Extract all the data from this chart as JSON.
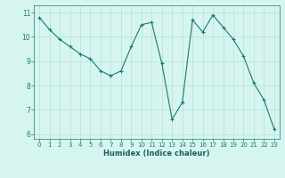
{
  "x": [
    0,
    1,
    2,
    3,
    4,
    5,
    6,
    7,
    8,
    9,
    10,
    11,
    12,
    13,
    14,
    15,
    16,
    17,
    18,
    19,
    20,
    21,
    22,
    23
  ],
  "y": [
    10.8,
    10.3,
    9.9,
    9.6,
    9.3,
    9.1,
    8.6,
    8.4,
    8.6,
    9.6,
    10.5,
    10.6,
    8.9,
    6.6,
    7.3,
    10.7,
    10.2,
    10.9,
    10.4,
    9.9,
    9.2,
    8.1,
    7.4,
    6.2
  ],
  "line_color": "#1a7a6e",
  "marker": "+",
  "marker_size": 3,
  "marker_color": "#1a7a6e",
  "bg_color": "#d6f5f0",
  "grid_color": "#b8e0d8",
  "axis_color": "#1a7a6e",
  "tick_color": "#1a7a6e",
  "xlabel": "Humidex (Indice chaleur)",
  "xlabel_color": "#1a5f5a",
  "xlim": [
    -0.5,
    23.5
  ],
  "ylim": [
    5.8,
    11.3
  ],
  "yticks": [
    6,
    7,
    8,
    9,
    10,
    11
  ],
  "xticks": [
    0,
    1,
    2,
    3,
    4,
    5,
    6,
    7,
    8,
    9,
    10,
    11,
    12,
    13,
    14,
    15,
    16,
    17,
    18,
    19,
    20,
    21,
    22,
    23
  ]
}
